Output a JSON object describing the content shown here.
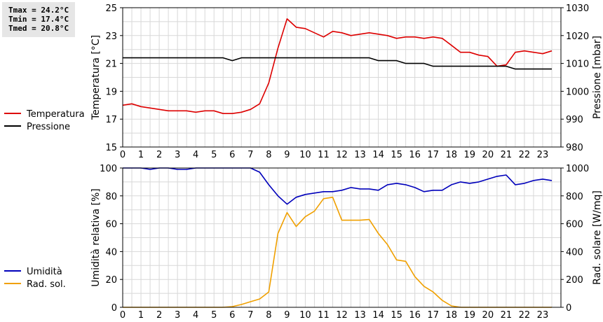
{
  "stats": {
    "tmax": "Tmax = 24.2°C",
    "tmin": "Tmin = 17.4°C",
    "tmed": "Tmed = 20.8°C"
  },
  "chart_data": [
    {
      "type": "line",
      "xlabel": "",
      "ylabel": "Temperatura [°C]",
      "y2label": "Pressione [mbar]",
      "xlim": [
        0,
        24
      ],
      "ylim": [
        15,
        25
      ],
      "y2lim": [
        980,
        1030
      ],
      "x_ticks": [
        0,
        1,
        2,
        3,
        4,
        5,
        6,
        7,
        8,
        9,
        10,
        11,
        12,
        13,
        14,
        15,
        16,
        17,
        18,
        19,
        20,
        21,
        22,
        23
      ],
      "y_ticks": [
        15,
        17,
        19,
        21,
        23,
        25
      ],
      "y2_ticks": [
        980,
        990,
        1000,
        1010,
        1020,
        1030
      ],
      "grid": true,
      "legend": "left",
      "series": [
        {
          "name": "Temperatura",
          "axis": "left",
          "color": "#dd0000",
          "x": [
            0,
            0.5,
            1,
            1.5,
            2,
            2.5,
            3,
            3.5,
            4,
            4.5,
            5,
            5.5,
            6,
            6.5,
            7,
            7.5,
            8,
            8.5,
            9,
            9.5,
            10,
            10.5,
            11,
            11.5,
            12,
            12.5,
            13,
            13.5,
            14,
            14.5,
            15,
            15.5,
            16,
            16.5,
            17,
            17.5,
            18,
            18.5,
            19,
            19.5,
            20,
            20.5,
            21,
            21.5,
            22,
            22.5,
            23,
            23.5
          ],
          "values": [
            18.0,
            18.1,
            17.9,
            17.8,
            17.7,
            17.6,
            17.6,
            17.6,
            17.5,
            17.6,
            17.6,
            17.4,
            17.4,
            17.5,
            17.7,
            18.1,
            19.6,
            22.1,
            24.2,
            23.6,
            23.5,
            23.2,
            22.9,
            23.3,
            23.2,
            23.0,
            23.1,
            23.2,
            23.1,
            23.0,
            22.8,
            22.9,
            22.9,
            22.8,
            22.9,
            22.8,
            22.3,
            21.8,
            21.8,
            21.6,
            21.5,
            20.8,
            20.9,
            21.8,
            21.9,
            21.8,
            21.7,
            21.9
          ]
        },
        {
          "name": "Pressione",
          "axis": "right",
          "color": "#000000",
          "x": [
            0,
            0.5,
            1,
            1.5,
            2,
            2.5,
            3,
            3.5,
            4,
            4.5,
            5,
            5.5,
            6,
            6.5,
            7,
            7.5,
            8,
            8.5,
            9,
            9.5,
            10,
            10.5,
            11,
            11.5,
            12,
            12.5,
            13,
            13.5,
            14,
            14.5,
            15,
            15.5,
            16,
            16.5,
            17,
            17.5,
            18,
            18.5,
            19,
            19.5,
            20,
            20.5,
            21,
            21.5,
            22,
            22.5,
            23,
            23.5
          ],
          "values": [
            1012,
            1012,
            1012,
            1012,
            1012,
            1012,
            1012,
            1012,
            1012,
            1012,
            1012,
            1012,
            1011,
            1012,
            1012,
            1012,
            1012,
            1012,
            1012,
            1012,
            1012,
            1012,
            1012,
            1012,
            1012,
            1012,
            1012,
            1012,
            1011,
            1011,
            1011,
            1010,
            1010,
            1010,
            1009,
            1009,
            1009,
            1009,
            1009,
            1009,
            1009,
            1009,
            1009,
            1008,
            1008,
            1008,
            1008,
            1008
          ]
        }
      ]
    },
    {
      "type": "line",
      "xlabel": "",
      "ylabel": "Umidità relativa [%]",
      "y2label": "Rad. solare [W/mq]",
      "xlim": [
        0,
        24
      ],
      "ylim": [
        0,
        100
      ],
      "y2lim": [
        0,
        1000
      ],
      "x_ticks": [
        0,
        1,
        2,
        3,
        4,
        5,
        6,
        7,
        8,
        9,
        10,
        11,
        12,
        13,
        14,
        15,
        16,
        17,
        18,
        19,
        20,
        21,
        22,
        23
      ],
      "y_ticks": [
        0,
        20,
        40,
        60,
        80,
        100
      ],
      "y2_ticks": [
        0,
        200,
        400,
        600,
        800,
        1000
      ],
      "grid": true,
      "legend": "left",
      "series": [
        {
          "name": "Umidità",
          "axis": "left",
          "color": "#0000bb",
          "x": [
            0,
            0.5,
            1,
            1.5,
            2,
            2.5,
            3,
            3.5,
            4,
            4.5,
            5,
            5.5,
            6,
            6.5,
            7,
            7.5,
            8,
            8.5,
            9,
            9.5,
            10,
            10.5,
            11,
            11.5,
            12,
            12.5,
            13,
            13.5,
            14,
            14.5,
            15,
            15.5,
            16,
            16.5,
            17,
            17.5,
            18,
            18.5,
            19,
            19.5,
            20,
            20.5,
            21,
            21.5,
            22,
            22.5,
            23,
            23.5
          ],
          "values": [
            100,
            100,
            100,
            99,
            100,
            100,
            99,
            99,
            100,
            100,
            100,
            100,
            100,
            100,
            100,
            97,
            88,
            80,
            74,
            79,
            81,
            82,
            83,
            83,
            84,
            86,
            85,
            85,
            84,
            88,
            89,
            88,
            86,
            83,
            84,
            84,
            88,
            90,
            89,
            90,
            92,
            94,
            95,
            88,
            89,
            91,
            92,
            91
          ]
        },
        {
          "name": "Rad. sol.",
          "axis": "right",
          "color": "#f0a000",
          "x": [
            0,
            0.5,
            1,
            1.5,
            2,
            2.5,
            3,
            3.5,
            4,
            4.5,
            5,
            5.5,
            6,
            6.5,
            7,
            7.5,
            8,
            8.5,
            9,
            9.5,
            10,
            10.5,
            11,
            11.5,
            12,
            12.5,
            13,
            13.5,
            14,
            14.5,
            15,
            15.5,
            16,
            16.5,
            17,
            17.5,
            18,
            18.5,
            19,
            19.5,
            20,
            20.5,
            21,
            21.5,
            22,
            22.5,
            23,
            23.5
          ],
          "values": [
            0,
            0,
            0,
            0,
            0,
            0,
            0,
            0,
            0,
            0,
            0,
            0,
            5,
            20,
            40,
            60,
            110,
            530,
            680,
            580,
            650,
            690,
            780,
            790,
            625,
            625,
            625,
            630,
            530,
            450,
            340,
            330,
            220,
            150,
            110,
            50,
            10,
            0,
            0,
            0,
            0,
            0,
            0,
            0,
            0,
            0,
            0,
            0
          ]
        }
      ]
    }
  ]
}
